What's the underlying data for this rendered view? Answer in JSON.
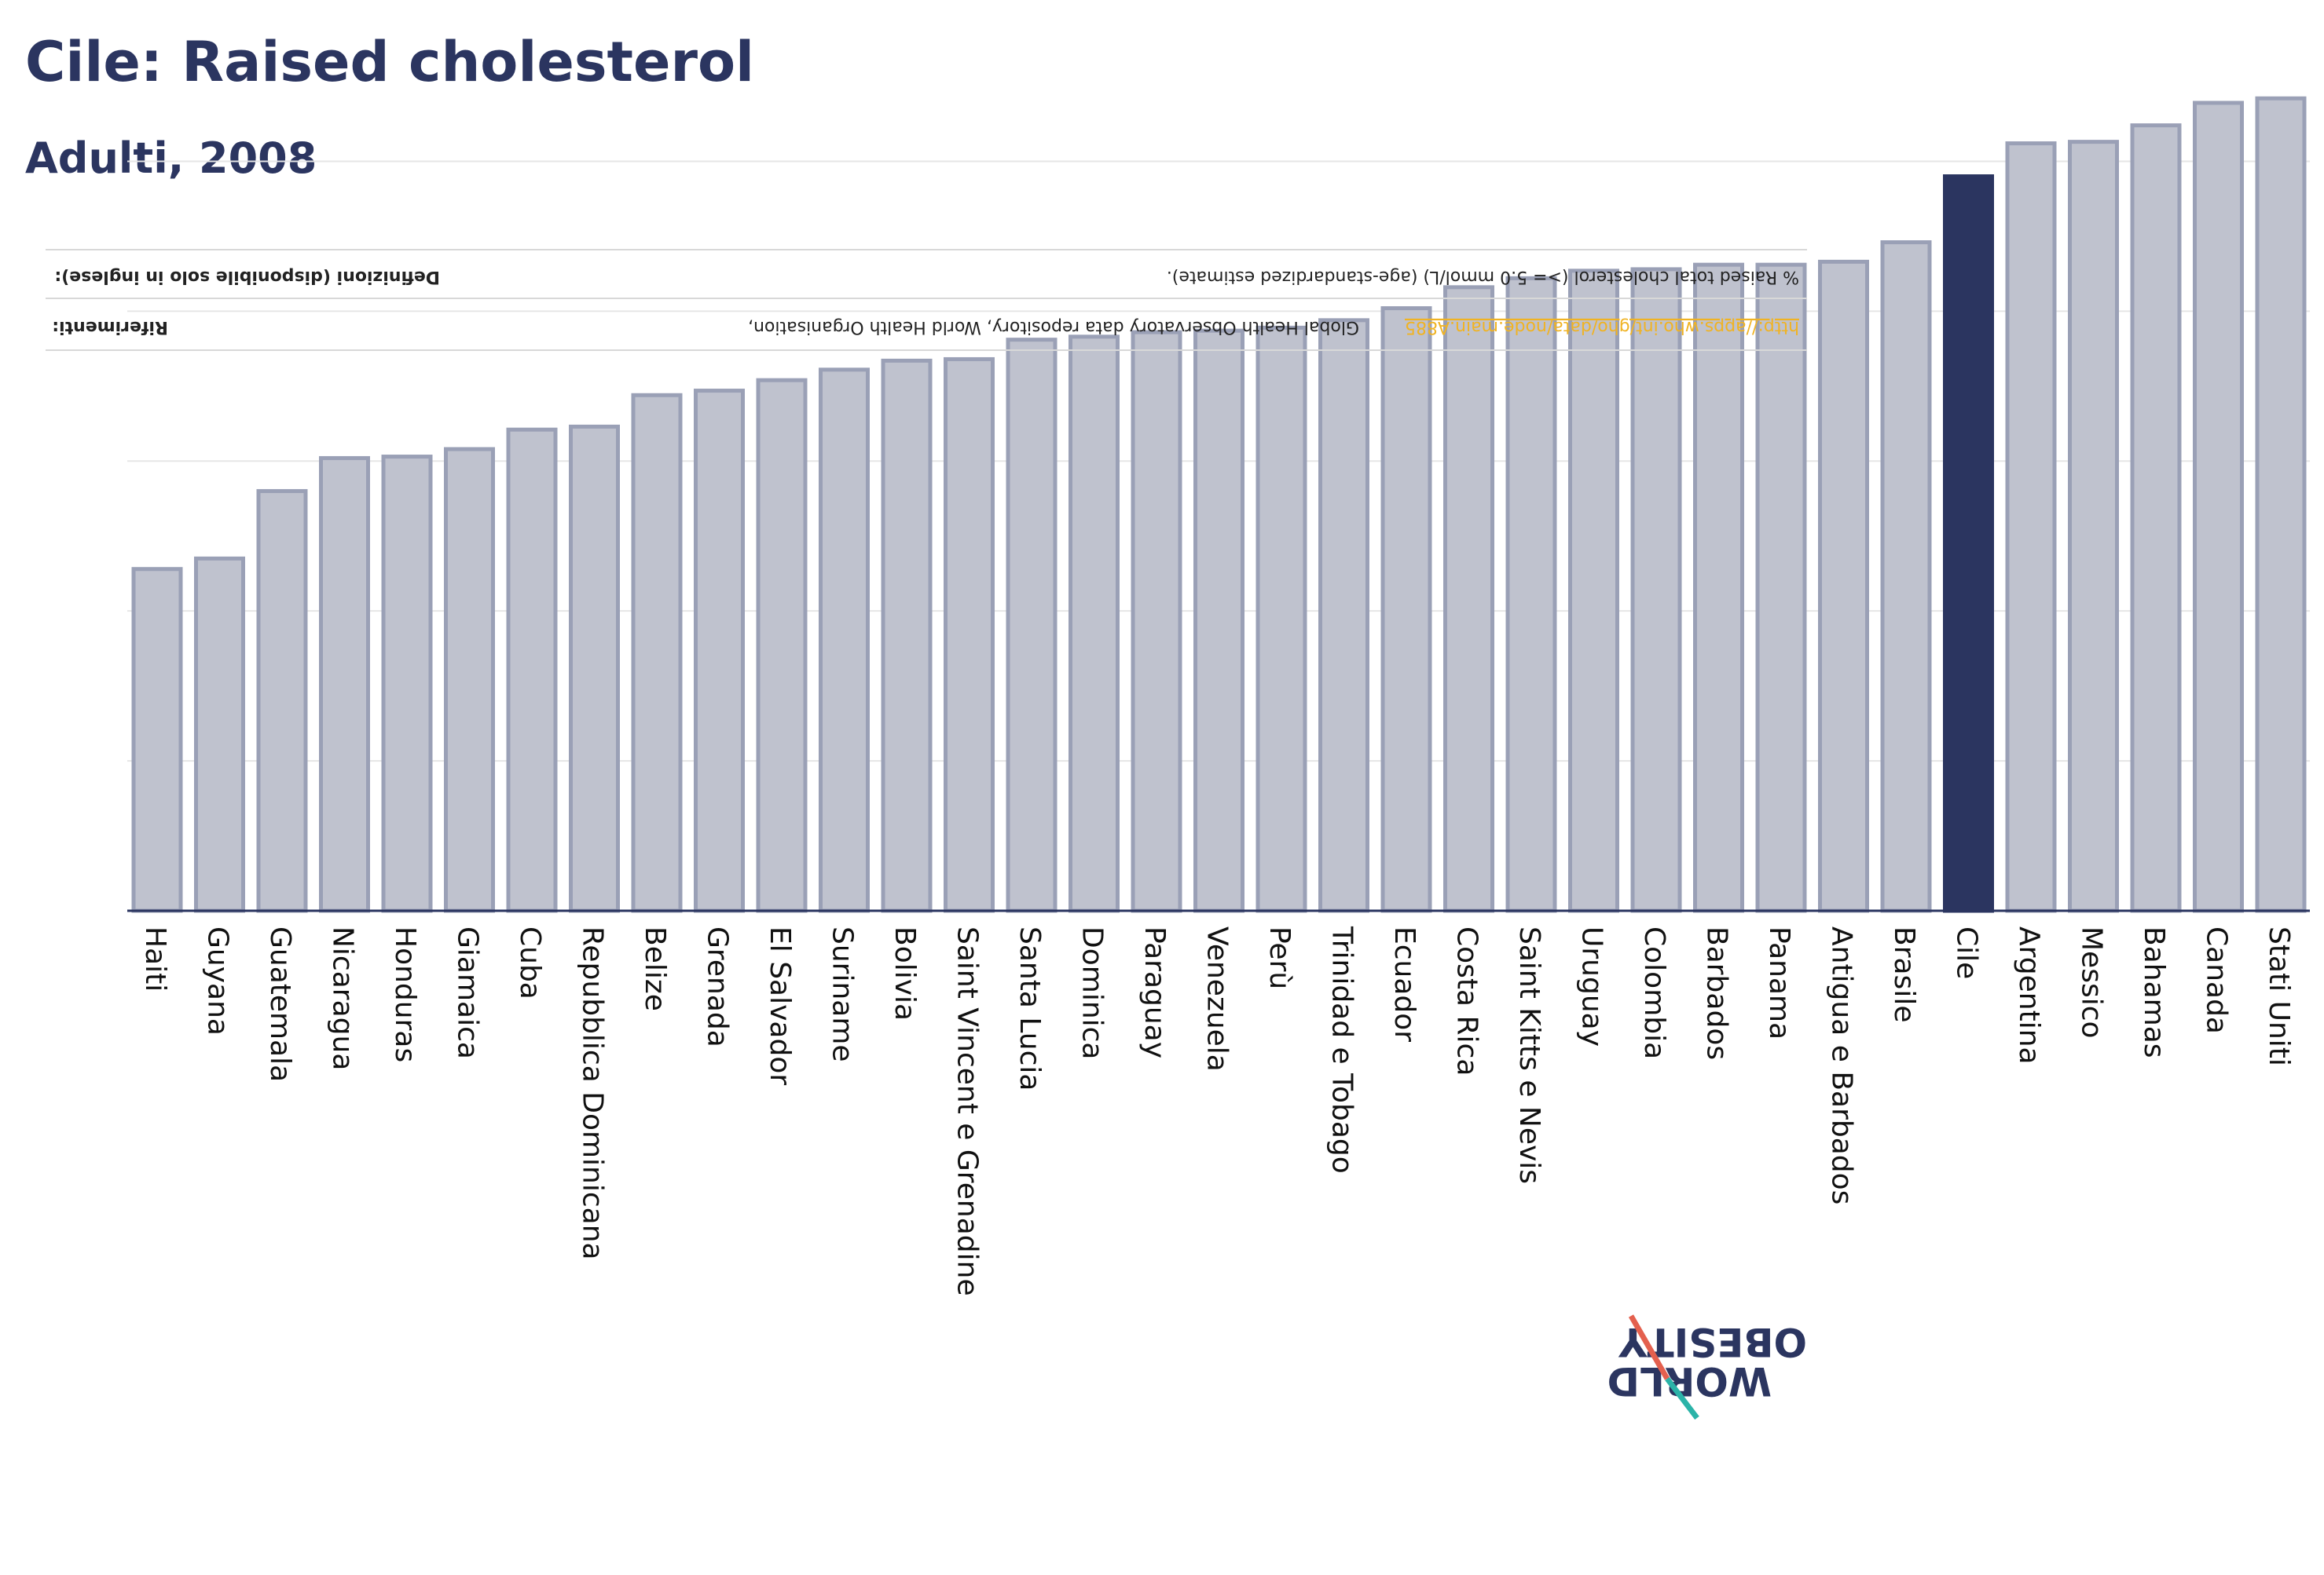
{
  "title": "Cile: Raised cholesterol",
  "subtitle": "Adulti, 2008",
  "colors": {
    "highlight": "#2b3560",
    "bar": "#bfc2ce",
    "bar_stroke": "#9aa0b6",
    "text": "#2b3560",
    "link": "#f0b323"
  },
  "info": {
    "definitions_label": "Definizioni (disponibile solo in inglese):",
    "definitions_text": "% Raised total cholesterol (>= 5.0 mmol/L) (age-standardized estimate).",
    "references_label": "Riferimenti:",
    "references_text": "Global Health Observatory data repository, World Health Organisation,",
    "references_link": "http://apps.who.int/gho/data/node.main.A885"
  },
  "logo": {
    "line1": "OBESITY",
    "line2": "WORLD"
  },
  "chart_data": {
    "type": "bar",
    "categories": [
      "Haiti",
      "Guyana",
      "Guatemala",
      "Nicaragua",
      "Honduras",
      "Giamaica",
      "Cuba",
      "Repubblica Dominicana",
      "Belize",
      "Grenada",
      "El Salvador",
      "Suriname",
      "Bolivia",
      "Saint Vincent e Grenadine",
      "Santa Lucia",
      "Dominica",
      "Paraguay",
      "Venezuela",
      "Perù",
      "Trinidad e Tobago",
      "Ecuador",
      "Costa Rica",
      "Saint Kitts e Nevis",
      "Uruguay",
      "Colombia",
      "Barbados",
      "Panama",
      "Antigua e Barbados",
      "Brasile",
      "Cile",
      "Argentina",
      "Messico",
      "Bahamas",
      "Canada",
      "Stati Uniti"
    ],
    "values": [
      22.8,
      23.5,
      28.0,
      30.2,
      30.3,
      30.8,
      32.1,
      32.3,
      34.4,
      34.7,
      35.4,
      36.1,
      36.7,
      36.8,
      38.1,
      38.3,
      38.6,
      38.7,
      38.9,
      39.4,
      40.2,
      41.6,
      42.2,
      42.7,
      42.8,
      43.1,
      43.1,
      43.3,
      44.6,
      49.0,
      51.2,
      51.3,
      52.4,
      53.9,
      54.2
    ],
    "highlight": "Cile",
    "ylim": [
      0,
      55
    ],
    "grid": true,
    "gridlines": [
      10,
      20,
      30,
      40,
      50
    ]
  }
}
